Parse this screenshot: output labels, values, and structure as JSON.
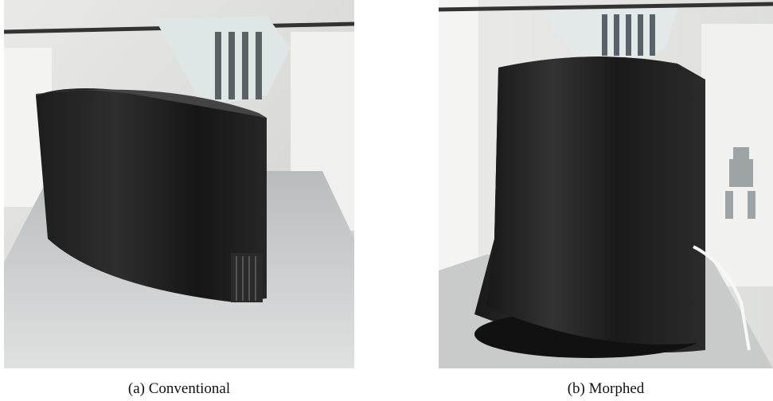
{
  "figure": {
    "subfigures": [
      {
        "caption": "(a) Conventional"
      },
      {
        "caption": "(b) Morphed"
      }
    ]
  }
}
